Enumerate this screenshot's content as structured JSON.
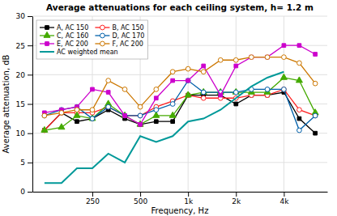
{
  "chart_data": {
    "type": "line",
    "title": "Average attenuations for each ceiling system, h= 1.2 m",
    "x_label": "Frequency, Hz",
    "y_label": "Average attenuation, dB",
    "x": [
      125,
      160,
      200,
      250,
      315,
      400,
      500,
      630,
      800,
      1000,
      1250,
      1600,
      2000,
      2500,
      3150,
      4000,
      5000,
      6300
    ],
    "series": [
      {
        "name": "A, AC 150",
        "color": "#000000",
        "marker": "square",
        "values": [
          10.5,
          13.5,
          12.0,
          12.5,
          14.0,
          12.5,
          11.5,
          12.0,
          12.0,
          16.5,
          16.5,
          16.5,
          15.0,
          16.5,
          16.5,
          17.0,
          12.5,
          10.0
        ]
      },
      {
        "name": "B, AC 150",
        "color": "#ff2020",
        "marker": "circle-open",
        "values": [
          10.5,
          13.5,
          13.5,
          13.5,
          14.5,
          13.0,
          13.0,
          14.5,
          15.5,
          16.5,
          16.0,
          16.0,
          16.0,
          16.5,
          16.5,
          17.5,
          14.0,
          13.0
        ]
      },
      {
        "name": "C, AC 160",
        "color": "#44aa00",
        "marker": "triangle-up",
        "values": [
          10.5,
          11.0,
          13.0,
          12.5,
          15.0,
          13.0,
          11.5,
          13.0,
          13.0,
          16.5,
          17.0,
          17.0,
          17.0,
          17.0,
          17.0,
          19.5,
          19.0,
          13.5
        ]
      },
      {
        "name": "D, AC 170",
        "color": "#0060aa",
        "marker": "circle-open",
        "values": [
          13.0,
          14.0,
          14.5,
          12.5,
          14.5,
          13.0,
          13.0,
          14.0,
          15.0,
          19.0,
          17.0,
          17.0,
          17.0,
          17.5,
          17.5,
          17.5,
          10.5,
          13.0
        ]
      },
      {
        "name": "E, AC 200",
        "color": "#cc00cc",
        "marker": "square",
        "values": [
          13.5,
          14.0,
          14.5,
          17.5,
          17.0,
          13.0,
          11.5,
          16.0,
          19.0,
          19.0,
          21.5,
          16.5,
          21.5,
          23.0,
          23.0,
          25.0,
          25.0,
          23.5
        ]
      },
      {
        "name": "F, AC 200",
        "color": "#cc7700",
        "marker": "circle-open",
        "values": [
          13.0,
          13.5,
          14.0,
          14.0,
          19.0,
          17.5,
          14.5,
          17.5,
          20.5,
          21.0,
          20.5,
          22.5,
          22.5,
          23.0,
          23.0,
          23.0,
          22.0,
          18.5
        ]
      },
      {
        "name": "AC weighted mean",
        "color": "#009999",
        "marker": "none",
        "values": [
          1.5,
          1.5,
          4.0,
          4.0,
          6.5,
          5.0,
          9.5,
          8.5,
          9.5,
          12.0,
          12.5,
          14.0,
          16.0,
          18.0,
          19.5,
          20.5,
          null,
          null
        ]
      }
    ],
    "log": "x",
    "xlim": [
      105,
      7500
    ],
    "xticks": [
      250,
      500,
      {
        "value": 1000,
        "label": "1k"
      },
      {
        "value": 2000,
        "label": "2k"
      },
      {
        "value": 4000,
        "label": "4k"
      }
    ],
    "ylim": [
      0,
      30
    ],
    "yticks": [
      0,
      5,
      10,
      15,
      20,
      25,
      30
    ],
    "grid": true,
    "legend": "upper left"
  }
}
